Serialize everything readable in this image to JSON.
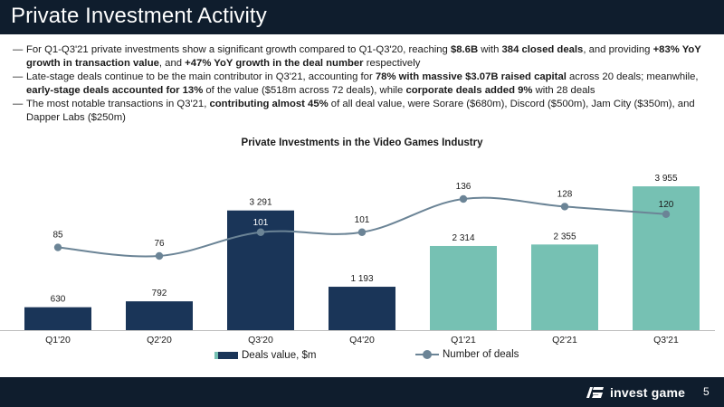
{
  "header": {
    "title": "Private Investment Activity"
  },
  "bullets": [
    {
      "dash": "—",
      "segments": [
        {
          "t": "For Q1-Q3'21 private investments show a significant growth compared to Q1-Q3'20, reaching ",
          "b": false
        },
        {
          "t": "$8.6B",
          "b": true
        },
        {
          "t": " with ",
          "b": false
        },
        {
          "t": "384 closed deals",
          "b": true
        },
        {
          "t": ", and providing ",
          "b": false
        },
        {
          "t": "+83% YoY growth in transaction value",
          "b": true
        },
        {
          "t": ", and ",
          "b": false
        },
        {
          "t": "+47% YoY growth in the deal number",
          "b": true
        },
        {
          "t": " respectively",
          "b": false
        }
      ]
    },
    {
      "dash": "—",
      "segments": [
        {
          "t": "Late-stage deals continue to be the main contributor in Q3'21, accounting for ",
          "b": false
        },
        {
          "t": "78% with massive $3.07B raised capital",
          "b": true
        },
        {
          "t": " across 20 deals; meanwhile, ",
          "b": false
        },
        {
          "t": "early-stage deals accounted for 13%",
          "b": true
        },
        {
          "t": " of the value ($518m across 72 deals), while ",
          "b": false
        },
        {
          "t": "corporate deals added 9%",
          "b": true
        },
        {
          "t": " with 28 deals",
          "b": false
        }
      ]
    },
    {
      "dash": "—",
      "segments": [
        {
          "t": "The most notable transactions in Q3'21, ",
          "b": false
        },
        {
          "t": "contributing almost 45%",
          "b": true
        },
        {
          "t": " of all deal value, were Sorare ($680m), Discord ($500m), Jam City ($350m), and Dapper Labs ($250m)",
          "b": false
        }
      ]
    }
  ],
  "chart_data": {
    "type": "bar",
    "title": "Private Investments in the Video Games Industry",
    "categories": [
      "Q1'20",
      "Q2'20",
      "Q3'20",
      "Q4'20",
      "Q1'21",
      "Q2'21",
      "Q3'21"
    ],
    "series": [
      {
        "name": "Deals value, $m",
        "type": "bar",
        "values": [
          630,
          792,
          3291,
          1193,
          2314,
          2355,
          3955
        ],
        "labels": [
          "630",
          "792",
          "3 291",
          "1 193",
          "2 314",
          "2 355",
          "3 955"
        ],
        "colors": [
          "#1a3558",
          "#1a3558",
          "#1a3558",
          "#1a3558",
          "#76c1b3",
          "#76c1b3",
          "#76c1b3"
        ]
      },
      {
        "name": "Number of deals",
        "type": "line",
        "values": [
          85,
          76,
          101,
          101,
          136,
          128,
          120
        ],
        "labels": [
          "85",
          "76",
          "101",
          "101",
          "136",
          "128",
          "120"
        ],
        "color": "#6b8496"
      }
    ],
    "legend_position": "bottom",
    "grid": false
  },
  "footer": {
    "brand": "invest game",
    "page": "5"
  },
  "colors": {
    "header_bg": "#0f1d2d",
    "bar_2020": "#1a3558",
    "bar_2021": "#76c1b3",
    "line": "#6b8496"
  }
}
